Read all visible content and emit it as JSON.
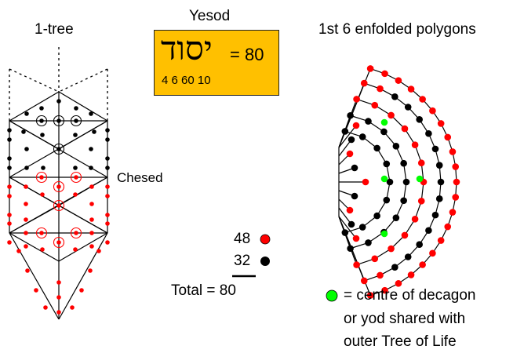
{
  "labels": {
    "left_title": "1-tree",
    "center_title": "Yesod",
    "right_title": "1st 6 enfolded polygons",
    "chesed": "Chesed"
  },
  "hebrew_box": {
    "hebrew_word": "יסוד",
    "equals_value": "= 80",
    "letter_values": "4 6 60 10"
  },
  "tally": {
    "red_count": "48",
    "black_count": "32",
    "total_label": "Total = 80"
  },
  "legend": {
    "line1": "= centre of decagon",
    "line2": "or yod shared with",
    "line3": "outer Tree of Life"
  },
  "colors": {
    "box_fill": "#ffc000",
    "red_yod": "#ff0000",
    "black_yod": "#000000",
    "green_centre": "#00ff00"
  }
}
